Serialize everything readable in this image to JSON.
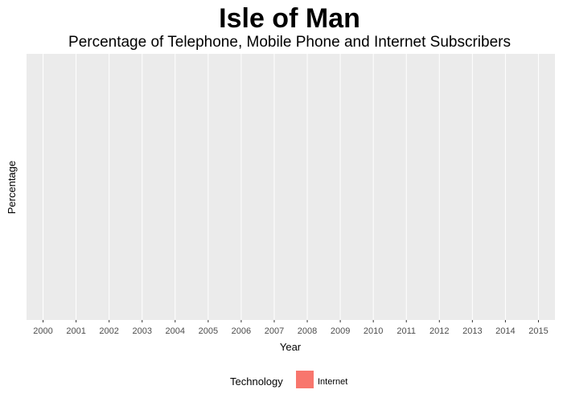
{
  "chart_data": {
    "type": "bar",
    "title": "Isle of Man",
    "subtitle": "Percentage of Telephone, Mobile Phone and Internet Subscribers",
    "xlabel": "Year",
    "ylabel": "Percentage",
    "categories": [
      "2000",
      "2001",
      "2002",
      "2003",
      "2004",
      "2005",
      "2006",
      "2007",
      "2008",
      "2009",
      "2010",
      "2011",
      "2012",
      "2013",
      "2014",
      "2015"
    ],
    "series": [
      {
        "name": "Internet",
        "values": [
          null,
          null,
          null,
          null,
          null,
          null,
          null,
          null,
          null,
          null,
          null,
          null,
          null,
          null,
          null,
          null
        ]
      }
    ],
    "grid": true,
    "legend": {
      "title": "Technology",
      "position": "bottom"
    },
    "colors": {
      "panel": "#ebebeb",
      "grid": "#ffffff",
      "Internet": "#f8766d"
    }
  }
}
